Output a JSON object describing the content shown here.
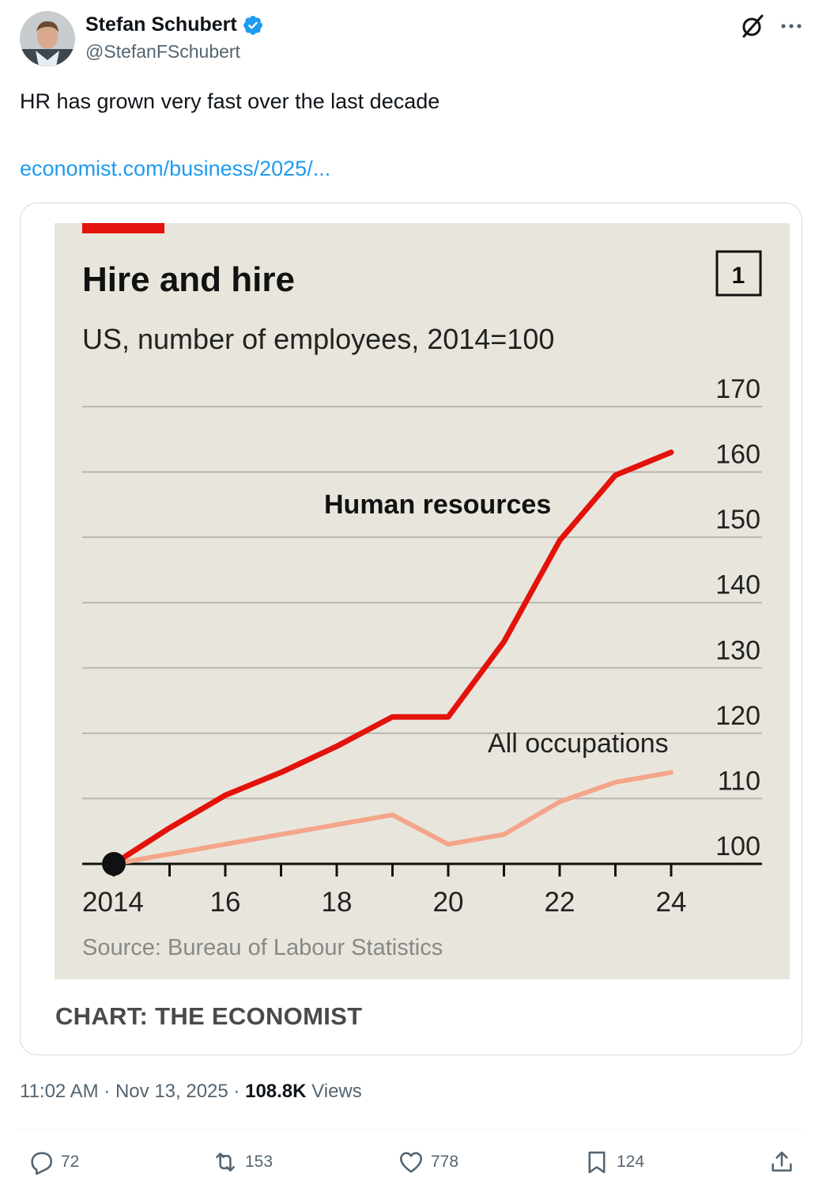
{
  "author": {
    "display_name": "Stefan Schubert",
    "handle": "@StefanFSchubert"
  },
  "tweet": {
    "text": "HR has grown very fast over the last decade",
    "link_text": "economist.com/business/2025/..."
  },
  "meta": {
    "time": "11:02 AM",
    "date": "Nov 13, 2025",
    "views_count": "108.8K",
    "views_label": "Views"
  },
  "actions": {
    "replies": "72",
    "reposts": "153",
    "likes": "778",
    "bookmarks": "124"
  },
  "card": {
    "credit": "CHART: THE ECONOMIST"
  },
  "chart_data": {
    "type": "line",
    "title": "Hire and hire",
    "subtitle": "US, number of employees, 2014=100",
    "chart_number": "1",
    "x": [
      2014,
      2015,
      2016,
      2017,
      2018,
      2019,
      2020,
      2021,
      2022,
      2023,
      2024
    ],
    "x_tick_values": [
      2014,
      2015,
      2016,
      2017,
      2018,
      2019,
      2020,
      2021,
      2022,
      2023,
      2024
    ],
    "x_tick_labels": [
      "2014",
      "16",
      "18",
      "20",
      "22",
      "24"
    ],
    "x_labeled_values": [
      2014,
      2016,
      2018,
      2020,
      2022,
      2024
    ],
    "y_ticks": [
      100,
      110,
      120,
      130,
      140,
      150,
      160,
      170
    ],
    "ylim": [
      100,
      170
    ],
    "series": [
      {
        "name": "Human resources",
        "color": "#e3120b",
        "values": [
          100,
          105.5,
          110.5,
          114,
          118,
          122.5,
          122.5,
          134,
          149.5,
          159.5,
          163
        ]
      },
      {
        "name": "All occupations",
        "color": "#f4a58a",
        "values": [
          100,
          101.5,
          103,
          104.5,
          106,
          107.5,
          103,
          104.5,
          109.5,
          112.5,
          114
        ]
      }
    ],
    "source": "Source: Bureau of Labour Statistics",
    "background": "#e8e6dc",
    "accent": "#e3120b"
  }
}
